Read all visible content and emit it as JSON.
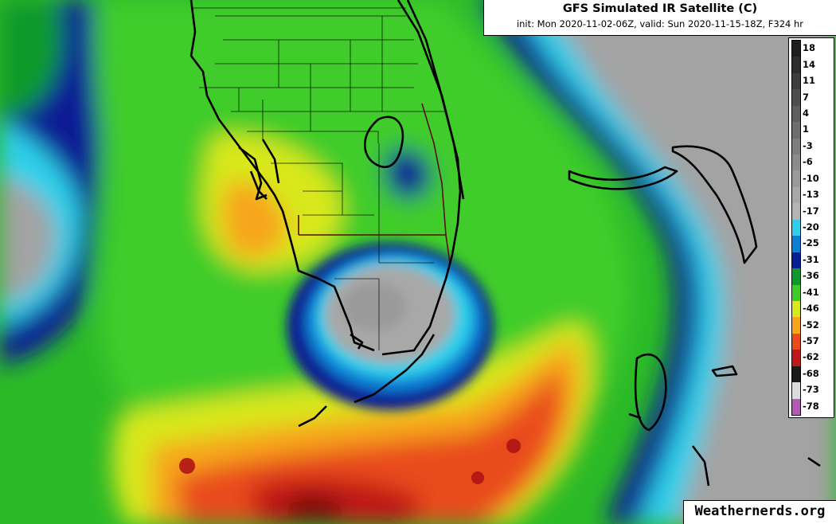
{
  "header": {
    "title": "GFS Simulated IR Satellite (C)",
    "subtitle": "init: Mon 2020-11-02-06Z, valid: Sun 2020-11-15-18Z, F324 hr"
  },
  "legend": {
    "labels": [
      "18",
      "14",
      "11",
      "7",
      "4",
      "1",
      "-3",
      "-6",
      "-10",
      "-13",
      "-17",
      "-20",
      "-25",
      "-31",
      "-36",
      "-41",
      "-46",
      "-52",
      "-57",
      "-62",
      "-68",
      "-73",
      "-78"
    ],
    "colors": [
      "#1e1e1e",
      "#2d2d2d",
      "#3d3d3d",
      "#4d4d4d",
      "#5e5e5e",
      "#6e6e6e",
      "#7d7d7d",
      "#8c8c8c",
      "#9a9a9a",
      "#a8a8a8",
      "#b4b4b4",
      "#2ed0ea",
      "#0a7fd4",
      "#071e94",
      "#0c9a2c",
      "#3fcc2a",
      "#d8e81f",
      "#f7a51d",
      "#e94b1d",
      "#c01818",
      "#1a1a1a",
      "#dcdcdc",
      "#b45ab4"
    ]
  },
  "colors": {
    "cold_gray": "#a3a3a3",
    "cyan": "#2ed0ea",
    "blue": "#0a7fd4",
    "navy": "#071e94",
    "green_dark": "#0c9a2c",
    "green": "#3fcc2a",
    "yellow": "#d8e81f",
    "orange": "#f7a51d",
    "red_orange": "#e94b1d",
    "red": "#c01818",
    "coast": "#000000"
  },
  "watermark": "Weathernerds.org"
}
